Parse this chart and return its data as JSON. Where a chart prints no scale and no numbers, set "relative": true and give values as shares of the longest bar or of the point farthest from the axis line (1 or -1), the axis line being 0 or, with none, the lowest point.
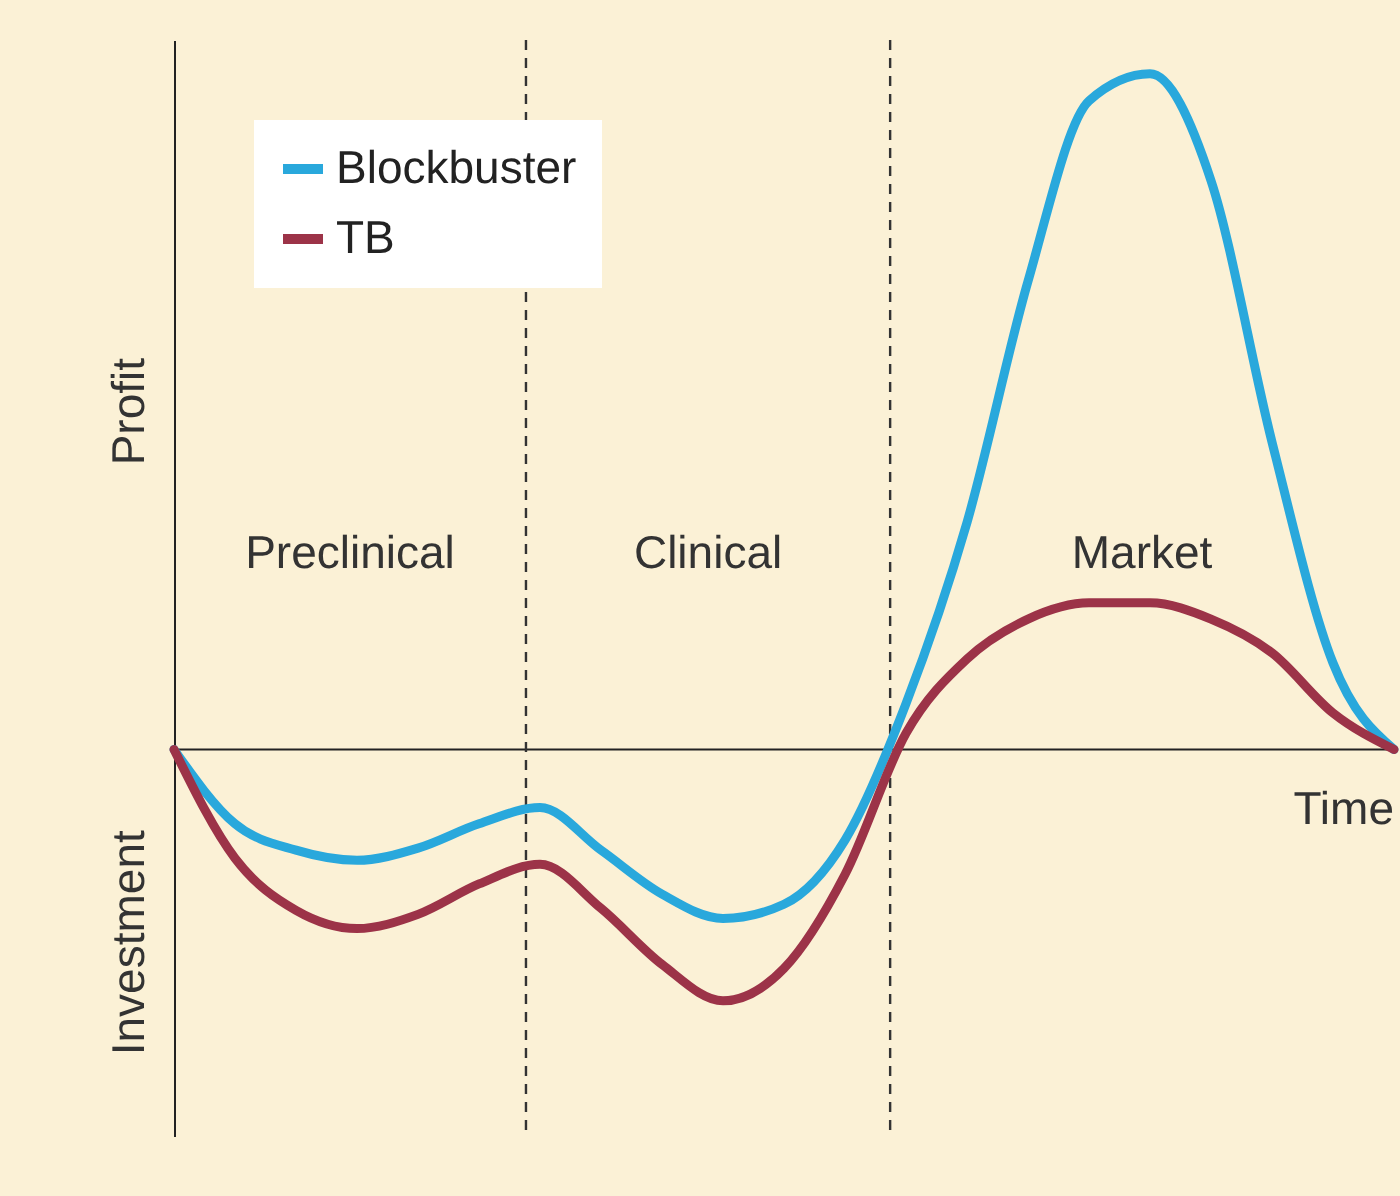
{
  "chart_data": {
    "type": "line",
    "relative": true,
    "xlabel": "Time",
    "categories": [
      null,
      null,
      null,
      null,
      null,
      null,
      null,
      null,
      null,
      null,
      null,
      null,
      null,
      null,
      null,
      null,
      null,
      null,
      null,
      null,
      null
    ],
    "series": [
      {
        "name": "Blockbuster",
        "color": "#29a8dc",
        "values": [
          0,
          -0.11,
          -0.149,
          -0.164,
          -0.146,
          -0.11,
          -0.086,
          -0.149,
          -0.214,
          -0.25,
          -0.229,
          -0.134,
          0.068,
          0.336,
          0.693,
          0.96,
          1,
          0.842,
          0.455,
          0.128,
          0
        ]
      },
      {
        "name": "TB",
        "color": "#9c3348",
        "values": [
          0,
          -0.161,
          -0.238,
          -0.265,
          -0.244,
          -0.199,
          -0.17,
          -0.235,
          -0.318,
          -0.372,
          -0.324,
          -0.185,
          0.024,
          0.134,
          0.193,
          0.217,
          0.217,
          0.193,
          0.143,
          0.054,
          0
        ]
      }
    ],
    "annotations": [
      "Profit",
      "Investment",
      "Preclinical",
      "Clinical",
      "Market"
    ],
    "legend": "top left"
  }
}
